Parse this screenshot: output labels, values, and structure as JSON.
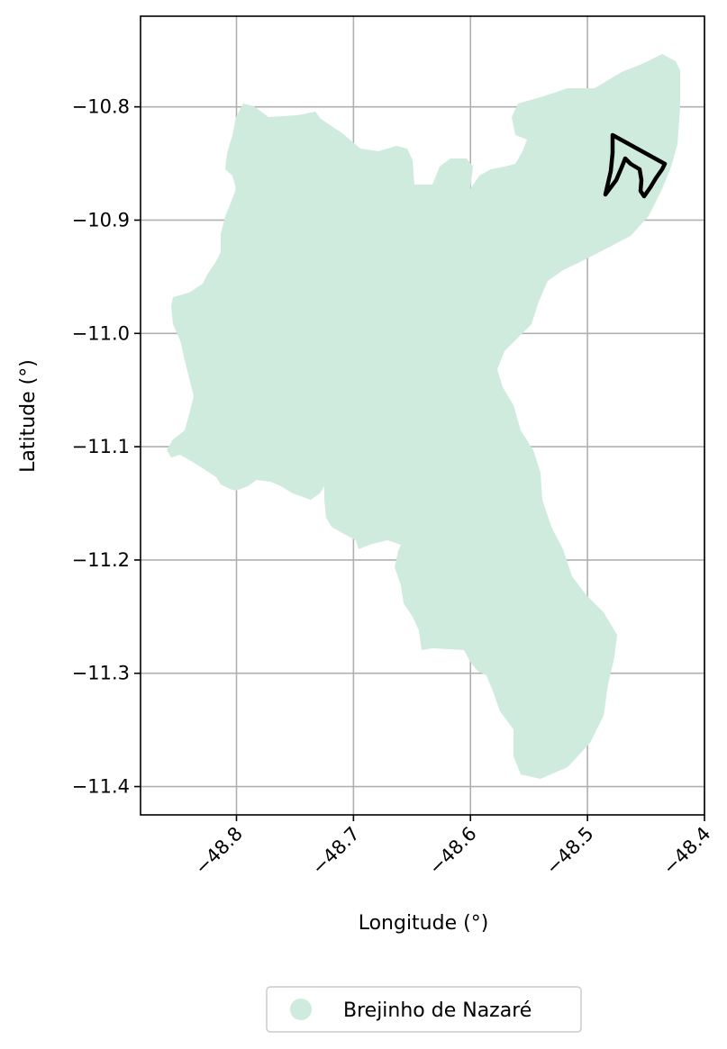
{
  "map": {
    "xlabel": "Longitude (°)",
    "ylabel": "Latitude (°)",
    "xlim": [
      -48.882,
      -48.4
    ],
    "ylim": [
      -11.425,
      -10.72
    ],
    "x_ticks": [
      {
        "value": -48.8,
        "label": "−48.8"
      },
      {
        "value": -48.7,
        "label": "−48.7"
      },
      {
        "value": -48.6,
        "label": "−48.6"
      },
      {
        "value": -48.5,
        "label": "−48.5"
      },
      {
        "value": -48.4,
        "label": "−48.4"
      }
    ],
    "y_ticks": [
      {
        "value": -10.8,
        "label": "−10.8"
      },
      {
        "value": -10.9,
        "label": "−10.9"
      },
      {
        "value": -11.0,
        "label": "−11.0"
      },
      {
        "value": -11.1,
        "label": "−11.1"
      },
      {
        "value": -11.2,
        "label": "−11.2"
      },
      {
        "value": -11.3,
        "label": "−11.3"
      },
      {
        "value": -11.4,
        "label": "−11.4"
      }
    ],
    "grid": true,
    "region_color": "#cfebdd",
    "outline_color": "#000000",
    "legend": {
      "placement": "bottom-center",
      "entries": [
        {
          "label": "Brejinho de Nazaré",
          "color": "#cfebdd"
        }
      ]
    }
  }
}
